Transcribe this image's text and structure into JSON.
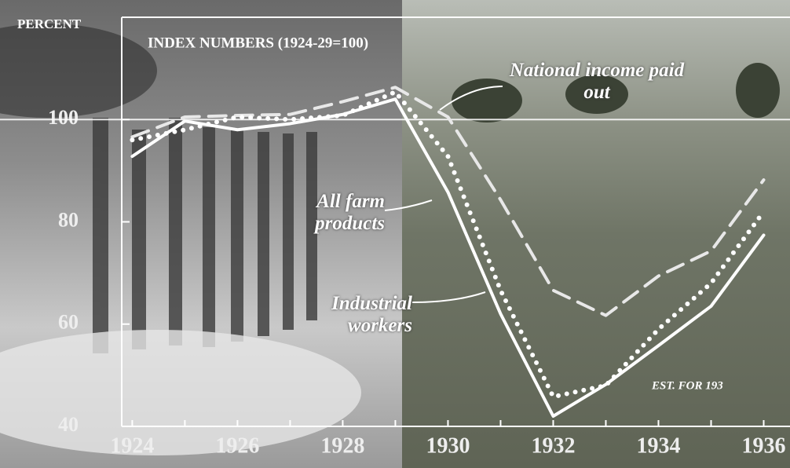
{
  "chart_data": {
    "type": "line",
    "title": "INDEX NUMBERS (1924-29=100)",
    "y_label": "PERCENT",
    "annotation": "EST. FOR 193",
    "x": [
      1924,
      1925,
      1926,
      1927,
      1928,
      1929,
      1930,
      1931,
      1932,
      1933,
      1934,
      1935,
      1936
    ],
    "xlim": [
      1923.8,
      1936.5
    ],
    "xticks": [
      1924,
      1926,
      1928,
      1930,
      1932,
      1934,
      1936
    ],
    "ylim": [
      40,
      120
    ],
    "yticks": [
      40,
      60,
      80,
      100
    ],
    "reference_line": 100,
    "series": [
      {
        "name": "National income paid out",
        "color": "#e8e8e8",
        "style": "dashed",
        "values": [
          96.6,
          100.5,
          100.8,
          101,
          103.5,
          106.3,
          100.5,
          84.3,
          66.6,
          61.7,
          69.4,
          74.3,
          88.2
        ]
      },
      {
        "name": "All farm products",
        "color": "#ffffff",
        "style": "dotted",
        "values": [
          96,
          98,
          100.5,
          100,
          100.8,
          105.4,
          92.8,
          66.6,
          45.8,
          48,
          59,
          68,
          82
        ]
      },
      {
        "name": "Industrial workers",
        "color": "#ffffff",
        "style": "solid",
        "values": [
          92.8,
          99.7,
          98,
          99.2,
          101,
          104,
          85.8,
          62,
          42,
          48.2,
          55.8,
          63.5,
          77.4
        ]
      }
    ]
  }
}
